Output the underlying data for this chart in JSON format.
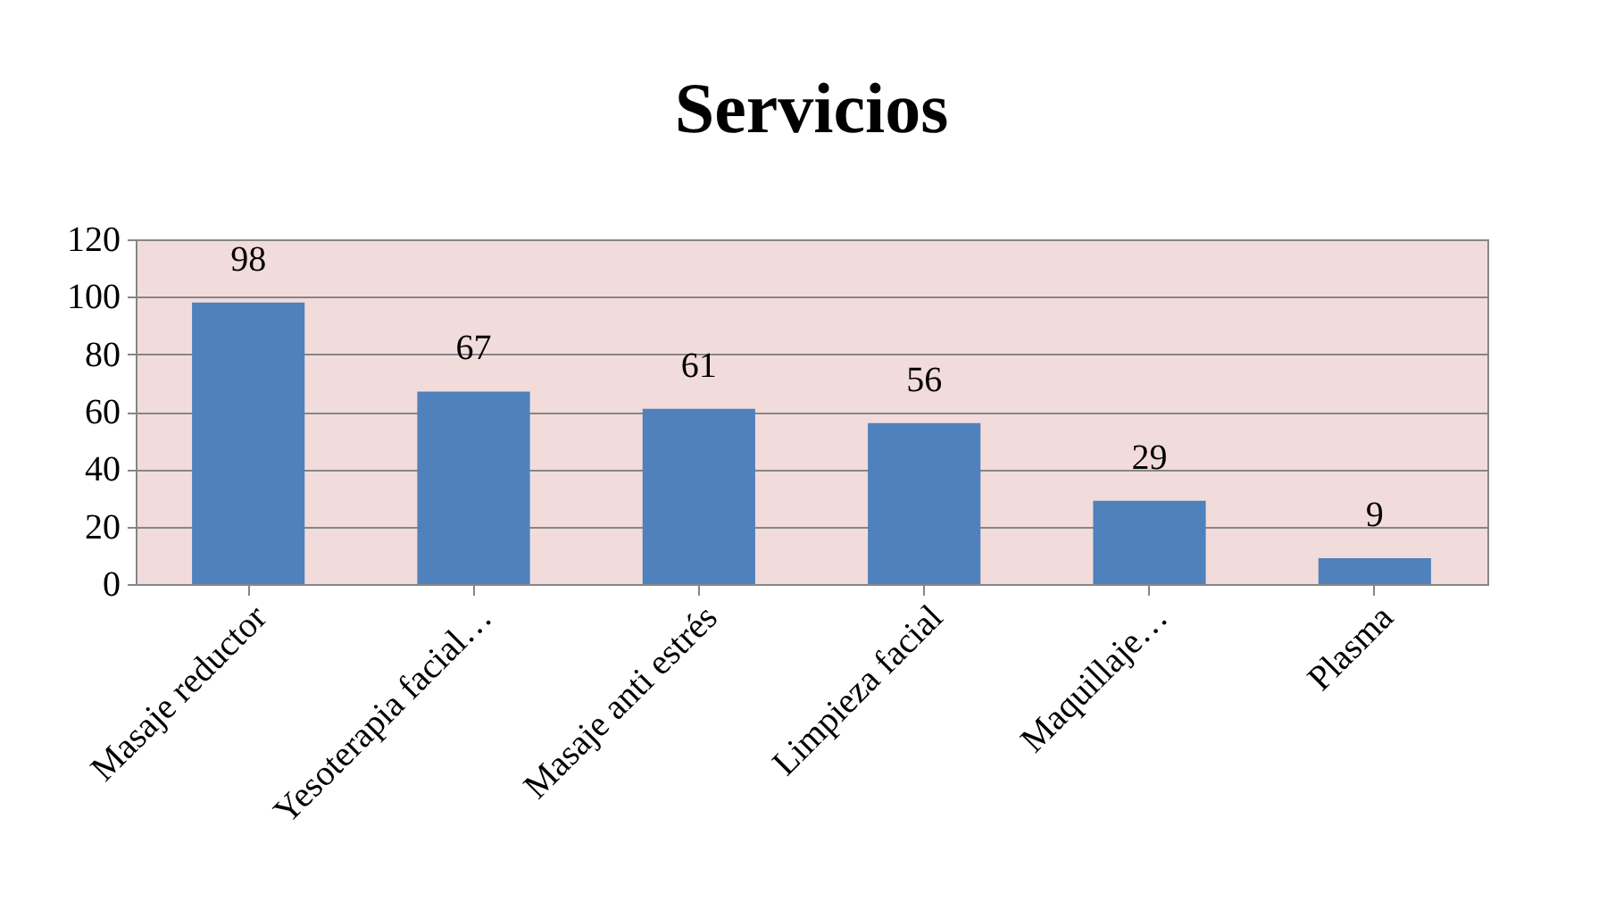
{
  "chart_data": {
    "type": "bar",
    "title": "Servicios",
    "categories": [
      "Masaje reductor",
      "Yesoterapia facial…",
      "Masaje anti estrés",
      "Limpieza facial",
      "Maquillaje…",
      "Plasma"
    ],
    "values": [
      98,
      67,
      61,
      56,
      29,
      9
    ],
    "color": "#4f81bd",
    "ylim": [
      0,
      120
    ],
    "yticks": [
      0,
      20,
      40,
      60,
      80,
      100,
      120
    ],
    "grid": "y",
    "data_labels": true
  }
}
